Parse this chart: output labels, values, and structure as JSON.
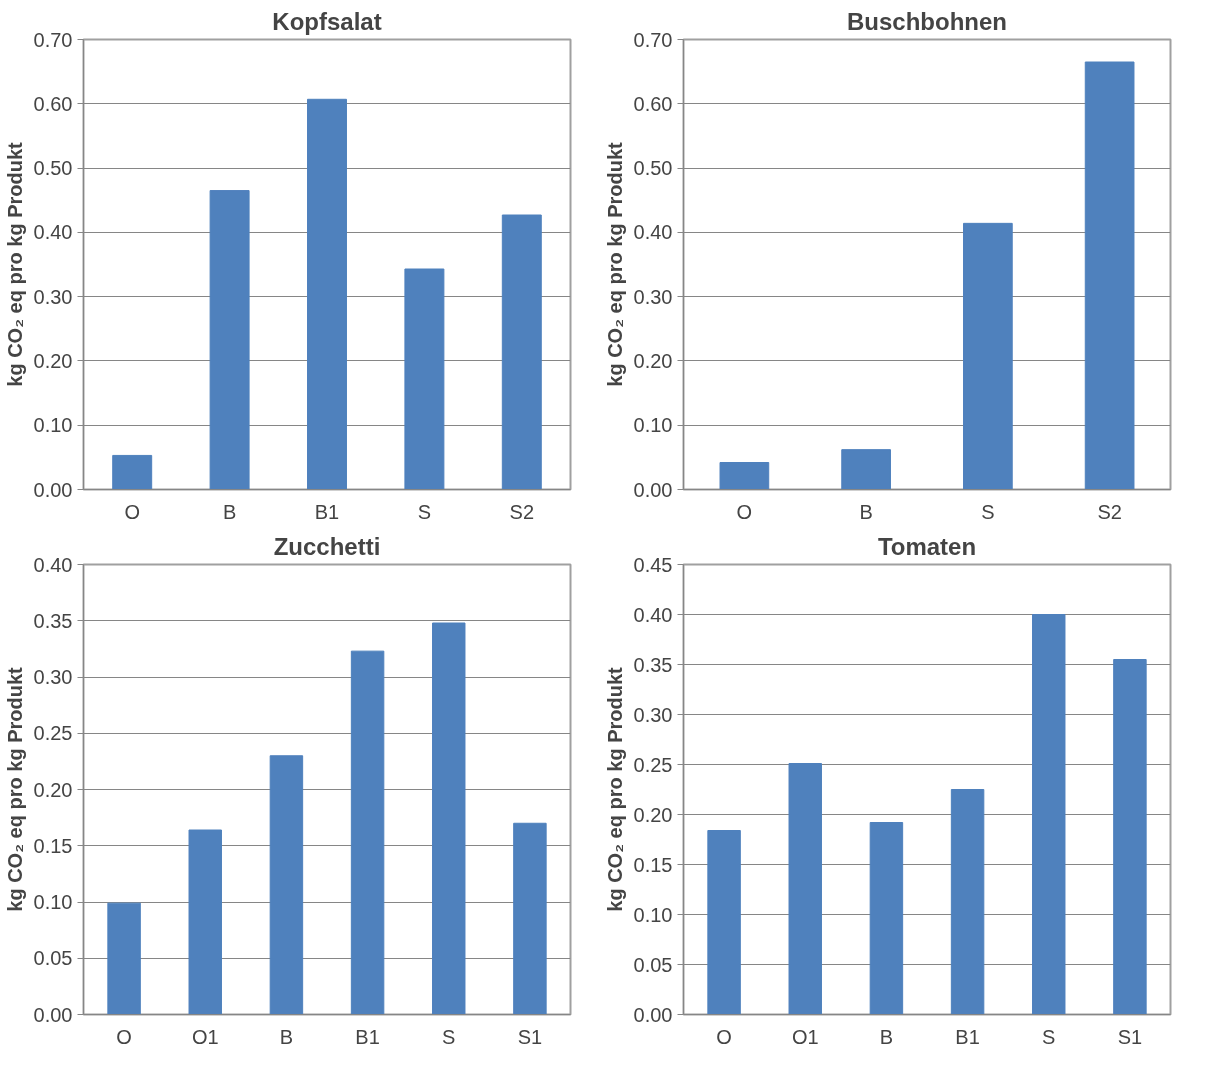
{
  "chart_data": [
    {
      "type": "bar",
      "title": "Kopfsalat",
      "ylabel": "kg CO₂ eq pro kg Produkt",
      "categories": [
        "O",
        "B",
        "B1",
        "S",
        "S2"
      ],
      "values": [
        0.053,
        0.465,
        0.607,
        0.343,
        0.427
      ],
      "color": "#4f81bd",
      "ylim": [
        0,
        0.7
      ],
      "yticks": [
        {
          "value": 0,
          "label": "0.00"
        },
        {
          "value": 0.1,
          "label": "0.10"
        },
        {
          "value": 0.2,
          "label": "0.20"
        },
        {
          "value": 0.3,
          "label": "0.30"
        },
        {
          "value": 0.4,
          "label": "0.40"
        },
        {
          "value": 0.5,
          "label": "0.50"
        },
        {
          "value": 0.6,
          "label": "0.60"
        },
        {
          "value": 0.7,
          "label": "0.70"
        }
      ],
      "grid": "y"
    },
    {
      "type": "bar",
      "title": "Buschbohnen",
      "ylabel": "kg CO₂ eq pro kg Produkt",
      "categories": [
        "O",
        "B",
        "S",
        "S2"
      ],
      "values": [
        0.042,
        0.062,
        0.414,
        0.665
      ],
      "color": "#4f81bd",
      "ylim": [
        0,
        0.7
      ],
      "yticks": [
        {
          "value": 0,
          "label": "0.00"
        },
        {
          "value": 0.1,
          "label": "0.10"
        },
        {
          "value": 0.2,
          "label": "0.20"
        },
        {
          "value": 0.3,
          "label": "0.30"
        },
        {
          "value": 0.4,
          "label": "0.40"
        },
        {
          "value": 0.5,
          "label": "0.50"
        },
        {
          "value": 0.6,
          "label": "0.60"
        },
        {
          "value": 0.7,
          "label": "0.70"
        }
      ],
      "grid": "y"
    },
    {
      "type": "bar",
      "title": "Zucchetti",
      "ylabel": "kg CO₂ eq pro kg Produkt",
      "categories": [
        "O",
        "O1",
        "B",
        "B1",
        "S",
        "S1"
      ],
      "values": [
        0.099,
        0.164,
        0.23,
        0.323,
        0.348,
        0.17
      ],
      "color": "#4f81bd",
      "ylim": [
        0,
        0.4
      ],
      "yticks": [
        {
          "value": 0,
          "label": "0.00"
        },
        {
          "value": 0.05,
          "label": "0.05"
        },
        {
          "value": 0.1,
          "label": "0.10"
        },
        {
          "value": 0.15,
          "label": "0.15"
        },
        {
          "value": 0.2,
          "label": "0.20"
        },
        {
          "value": 0.25,
          "label": "0.25"
        },
        {
          "value": 0.3,
          "label": "0.30"
        },
        {
          "value": 0.35,
          "label": "0.35"
        },
        {
          "value": 0.4,
          "label": "0.40"
        }
      ],
      "grid": "y"
    },
    {
      "type": "bar",
      "title": "Tomaten",
      "ylabel": "kg CO₂ eq pro kg Produkt",
      "categories": [
        "O",
        "O1",
        "B",
        "B1",
        "S",
        "S1"
      ],
      "values": [
        0.184,
        0.251,
        0.192,
        0.225,
        0.4,
        0.355
      ],
      "color": "#4f81bd",
      "ylim": [
        0,
        0.45
      ],
      "yticks": [
        {
          "value": 0,
          "label": "0.00"
        },
        {
          "value": 0.05,
          "label": "0.05"
        },
        {
          "value": 0.1,
          "label": "0.10"
        },
        {
          "value": 0.15,
          "label": "0.15"
        },
        {
          "value": 0.2,
          "label": "0.20"
        },
        {
          "value": 0.25,
          "label": "0.25"
        },
        {
          "value": 0.3,
          "label": "0.30"
        },
        {
          "value": 0.35,
          "label": "0.35"
        },
        {
          "value": 0.4,
          "label": "0.40"
        },
        {
          "value": 0.45,
          "label": "0.45"
        }
      ],
      "grid": "y"
    }
  ]
}
